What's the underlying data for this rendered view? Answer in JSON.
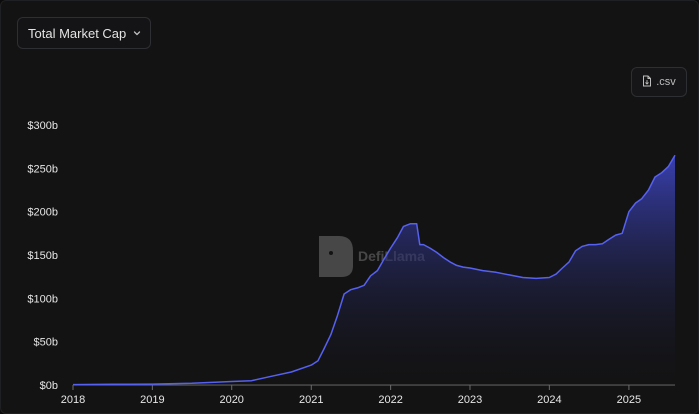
{
  "metric_select": {
    "label": "Total Market Cap",
    "icon": "chevron-down-icon"
  },
  "csv_button": {
    "label": ".csv",
    "icon": "file-icon"
  },
  "watermark": {
    "text": "DefiLlama",
    "icon": "llama-logo-icon"
  },
  "colors": {
    "line": "#5661f2",
    "fill_top": "#3b42b8",
    "background": "#131314",
    "text": "#e6e6e6"
  },
  "chart_data": {
    "type": "area",
    "title": "",
    "xlabel": "",
    "ylabel": "",
    "ylim": [
      0,
      300
    ],
    "y_unit": "billion USD",
    "xlim": [
      "2018-01-01",
      "2025-08-01"
    ],
    "yticks": [
      "$0b",
      "$50b",
      "$100b",
      "$150b",
      "$200b",
      "$250b",
      "$300b"
    ],
    "xticks": [
      "2018",
      "2019",
      "2020",
      "2021",
      "2022",
      "2023",
      "2024",
      "2025"
    ],
    "grid": false,
    "legend": "none",
    "series": [
      {
        "x": [
          "2018-01-01",
          "2018-07-01",
          "2019-01-01",
          "2019-07-01",
          "2020-01-01",
          "2020-04-01",
          "2020-07-01",
          "2020-10-01",
          "2021-01-01",
          "2021-02-01",
          "2021-03-01",
          "2021-04-01",
          "2021-05-01",
          "2021-06-01",
          "2021-07-01",
          "2021-08-01",
          "2021-09-01",
          "2021-10-01",
          "2021-11-01",
          "2021-12-01",
          "2022-01-01",
          "2022-02-01",
          "2022-03-01",
          "2022-04-01",
          "2022-05-01",
          "2022-05-15",
          "2022-06-01",
          "2022-07-01",
          "2022-08-01",
          "2022-09-01",
          "2022-10-01",
          "2022-11-01",
          "2022-12-01",
          "2023-01-01",
          "2023-03-01",
          "2023-05-01",
          "2023-07-01",
          "2023-09-01",
          "2023-11-01",
          "2024-01-01",
          "2024-02-01",
          "2024-03-01",
          "2024-04-01",
          "2024-05-01",
          "2024-06-01",
          "2024-07-01",
          "2024-08-01",
          "2024-09-01",
          "2024-10-01",
          "2024-11-01",
          "2024-12-01",
          "2025-01-01",
          "2025-02-01",
          "2025-03-01",
          "2025-04-01",
          "2025-05-01",
          "2025-06-01",
          "2025-07-01",
          "2025-08-01"
        ],
        "values": [
          0.5,
          0.8,
          1,
          2,
          4,
          5,
          10,
          15,
          23,
          28,
          42,
          58,
          80,
          105,
          110,
          112,
          115,
          126,
          132,
          145,
          158,
          170,
          183,
          186,
          186,
          162,
          162,
          158,
          153,
          147,
          142,
          138,
          136,
          135,
          132,
          130,
          127,
          124,
          123,
          124,
          128,
          135,
          142,
          155,
          160,
          162,
          162,
          163,
          168,
          173,
          175,
          200,
          210,
          215,
          225,
          240,
          245,
          252,
          265
        ]
      }
    ]
  }
}
